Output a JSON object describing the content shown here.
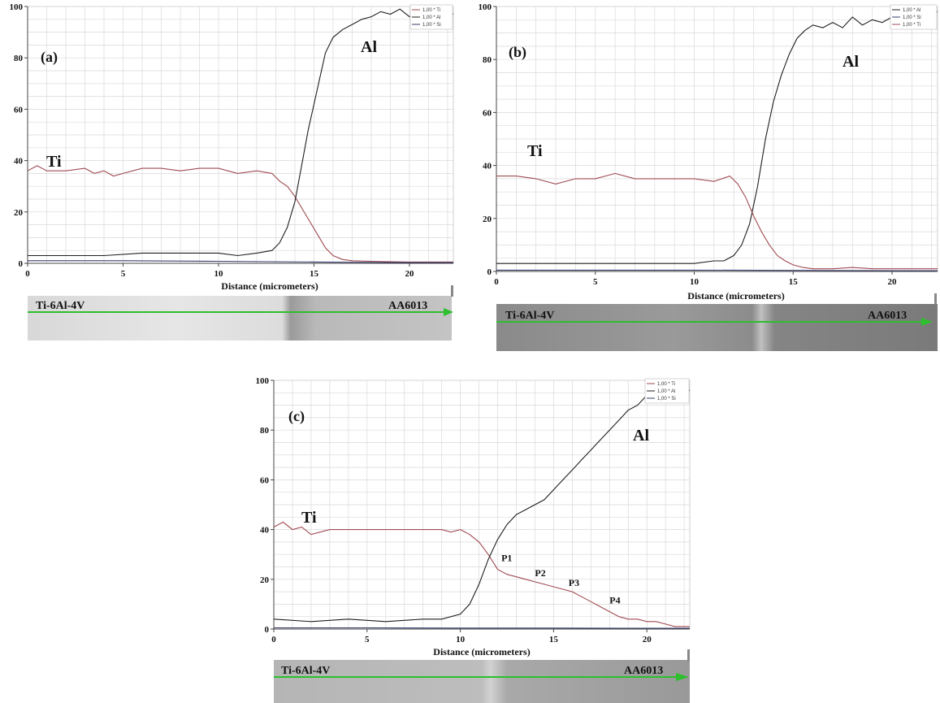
{
  "colors": {
    "ti": "#a04a52",
    "al": "#1f1f1f",
    "si": "#3a3d6e",
    "grid": "#d9d9d9",
    "arrow": "#2dbf2d"
  },
  "chart_data": [
    {
      "type": "line",
      "panel_label": "(a)",
      "xlabel": "Distance (micrometers)",
      "ylabel": "",
      "xlim": [
        0,
        22.3
      ],
      "ylim": [
        0,
        100
      ],
      "xticks": [
        "0",
        "5",
        "10",
        "15",
        "20"
      ],
      "yticks": [
        "0",
        "20",
        "40",
        "60",
        "80",
        "100"
      ],
      "legend": [
        "1,00 * Ti",
        "1,00 * Al",
        "1,00 * Si"
      ],
      "legend_position": "top-right",
      "series": [
        {
          "name": "Ti",
          "color_key": "ti",
          "x": [
            0,
            0.5,
            1,
            2,
            3,
            3.5,
            4,
            4.5,
            5,
            6,
            7,
            8,
            9,
            10,
            11,
            12,
            12.8,
            13.2,
            13.6,
            14,
            14.4,
            14.8,
            15.2,
            15.6,
            16,
            16.5,
            17,
            18,
            19,
            20,
            21,
            22.3
          ],
          "y": [
            36,
            38,
            36,
            36,
            37,
            35,
            36,
            34,
            35,
            37,
            37,
            36,
            37,
            37,
            35,
            36,
            35,
            32,
            30,
            26,
            21,
            16,
            11,
            6,
            3,
            1.5,
            1,
            0.8,
            0.6,
            0.5,
            0.5,
            0.5
          ]
        },
        {
          "name": "Al",
          "color_key": "al",
          "x": [
            0,
            2,
            4,
            6,
            8,
            10,
            11,
            12,
            12.8,
            13.2,
            13.6,
            14,
            14.4,
            14.7,
            15,
            15.3,
            15.6,
            16,
            16.5,
            17,
            17.5,
            18,
            18.5,
            19,
            19.5,
            20,
            20.5,
            21,
            21.5,
            22.3
          ],
          "y": [
            3,
            3,
            3,
            4,
            4,
            4,
            3,
            4,
            5,
            8,
            14,
            24,
            40,
            52,
            62,
            72,
            82,
            88,
            91,
            93,
            95,
            96,
            98,
            97,
            99,
            96,
            98,
            97,
            98,
            97
          ]
        },
        {
          "name": "Si",
          "color_key": "si",
          "x": [
            0,
            5,
            10,
            15,
            20,
            22.3
          ],
          "y": [
            1,
            1,
            0.8,
            0.5,
            0.3,
            0.3
          ]
        }
      ],
      "annotations": [
        "Ti",
        "Al"
      ],
      "micrograph_labels": [
        "Ti-6Al-4V",
        "AA6013"
      ]
    },
    {
      "type": "line",
      "panel_label": "(b)",
      "xlabel": "Distance (micrometers)",
      "ylabel": "",
      "xlim": [
        0,
        22.3
      ],
      "ylim": [
        0,
        100
      ],
      "xticks": [
        "0",
        "5",
        "10",
        "15",
        "20"
      ],
      "yticks": [
        "0",
        "20",
        "40",
        "60",
        "80",
        "100"
      ],
      "legend": [
        "1,00 * Al",
        "1,00 * Si",
        "1,00 * Ti"
      ],
      "legend_position": "top-right",
      "series": [
        {
          "name": "Al",
          "color_key": "al",
          "x": [
            0,
            2,
            4,
            6,
            8,
            10,
            11,
            11.5,
            12,
            12.4,
            12.8,
            13.2,
            13.6,
            14,
            14.4,
            14.8,
            15.2,
            15.6,
            16,
            16.5,
            17,
            17.5,
            18,
            18.5,
            19,
            19.5,
            20,
            21,
            22.3
          ],
          "y": [
            3,
            3,
            3,
            3,
            3,
            3,
            4,
            4,
            6,
            10,
            18,
            32,
            50,
            64,
            74,
            82,
            88,
            91,
            93,
            92,
            94,
            92,
            96,
            93,
            95,
            94,
            96,
            97,
            98
          ]
        },
        {
          "name": "Ti",
          "color_key": "ti",
          "x": [
            0,
            1,
            2,
            3,
            4,
            5,
            6,
            7,
            8,
            9,
            10,
            11,
            11.8,
            12.2,
            12.6,
            13,
            13.4,
            13.8,
            14.2,
            14.6,
            15,
            15.5,
            16,
            17,
            18,
            19,
            20,
            21,
            22.3
          ],
          "y": [
            36,
            36,
            35,
            33,
            35,
            35,
            37,
            35,
            35,
            35,
            35,
            34,
            36,
            33,
            28,
            21,
            15,
            10,
            6,
            4,
            2.5,
            1.5,
            1,
            1,
            1.5,
            1,
            1,
            1,
            1
          ]
        },
        {
          "name": "Si",
          "color_key": "si",
          "x": [
            0,
            5,
            10,
            15,
            20,
            22.3
          ],
          "y": [
            0.5,
            0.5,
            0.5,
            0.4,
            0.3,
            0.3
          ]
        }
      ],
      "annotations": [
        "Ti",
        "Al"
      ],
      "micrograph_labels": [
        "Ti-6Al-4V",
        "AA6013"
      ]
    },
    {
      "type": "line",
      "panel_label": "(c)",
      "xlabel": "Distance (micrometers)",
      "ylabel": "",
      "xlim": [
        0,
        22.3
      ],
      "ylim": [
        0,
        100
      ],
      "xticks": [
        "0",
        "5",
        "10",
        "15",
        "20"
      ],
      "yticks": [
        "0",
        "20",
        "40",
        "60",
        "80",
        "100"
      ],
      "legend": [
        "1,00 * Ti",
        "1,00 * Al",
        "1,00 * Si"
      ],
      "legend_position": "top-right",
      "series": [
        {
          "name": "Ti",
          "color_key": "ti",
          "x": [
            0,
            0.5,
            1,
            1.5,
            2,
            3,
            4,
            5,
            6,
            7,
            8,
            9,
            9.5,
            10,
            10.5,
            11,
            11.5,
            12,
            12.5,
            13,
            13.5,
            14,
            14.5,
            15,
            15.5,
            16,
            16.5,
            17,
            17.5,
            18,
            18.5,
            19,
            19.5,
            20,
            20.5,
            21,
            21.5,
            22.3
          ],
          "y": [
            41,
            43,
            40,
            41,
            38,
            40,
            40,
            40,
            40,
            40,
            40,
            40,
            39,
            40,
            38,
            35,
            30,
            24,
            22,
            21,
            20,
            19,
            18,
            17,
            16,
            15,
            13,
            11,
            9,
            7,
            5,
            4,
            4,
            3,
            3,
            2,
            1,
            1
          ]
        },
        {
          "name": "Al",
          "color_key": "al",
          "x": [
            0,
            2,
            4,
            6,
            8,
            9,
            10,
            10.5,
            11,
            11.5,
            12,
            12.5,
            13,
            13.5,
            14,
            14.5,
            15,
            15.5,
            16,
            16.5,
            17,
            17.5,
            18,
            18.5,
            19,
            19.5,
            20,
            21,
            22.3
          ],
          "y": [
            4,
            3,
            4,
            3,
            4,
            4,
            6,
            10,
            18,
            28,
            36,
            42,
            46,
            48,
            50,
            52,
            56,
            60,
            64,
            68,
            72,
            76,
            80,
            84,
            88,
            90,
            94,
            95,
            96
          ]
        },
        {
          "name": "Si",
          "color_key": "si",
          "x": [
            0,
            5,
            10,
            15,
            20,
            22.3
          ],
          "y": [
            0.5,
            0.5,
            0.4,
            0.4,
            0.3,
            0.3
          ]
        }
      ],
      "annotations": [
        "Ti",
        "Al"
      ],
      "points": [
        {
          "label": "P1",
          "x": 12.2,
          "y": 26
        },
        {
          "label": "P2",
          "x": 14,
          "y": 20
        },
        {
          "label": "P3",
          "x": 15.8,
          "y": 16
        },
        {
          "label": "P4",
          "x": 18,
          "y": 9
        }
      ],
      "micrograph_labels": [
        "Ti-6Al-4V",
        "AA6013"
      ]
    }
  ]
}
